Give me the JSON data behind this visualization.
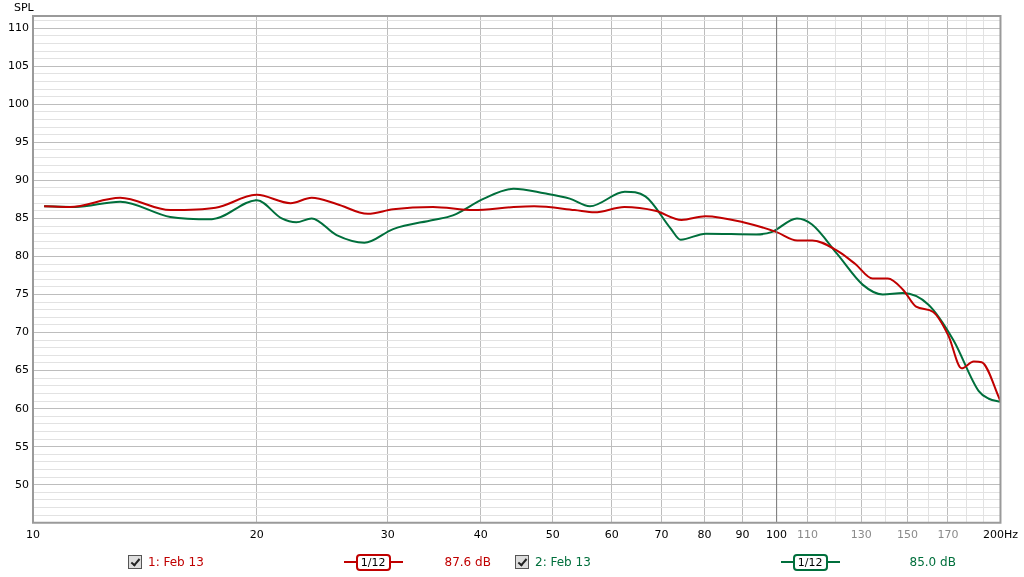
{
  "chart_data": {
    "type": "line",
    "ylabel": "SPL",
    "log": "x",
    "grid": true,
    "legend": "bottom",
    "marker": "none",
    "line_style": "solid",
    "xlim": [
      10,
      200
    ],
    "ylim": [
      45,
      111.6
    ],
    "xticks": [
      10,
      20,
      30,
      40,
      50,
      60,
      70,
      80,
      90,
      100,
      110,
      {
        "value": 120,
        "label": null
      },
      130,
      {
        "value": 140,
        "label": null
      },
      150,
      {
        "value": 160,
        "label": null
      },
      170,
      {
        "value": 180,
        "label": null
      },
      {
        "value": 190,
        "label": null
      },
      {
        "value": 200,
        "label": "200Hz"
      }
    ],
    "yticks": [
      {
        "value": 46,
        "label": null
      },
      {
        "value": 47,
        "label": null
      },
      {
        "value": 48,
        "label": null
      },
      {
        "value": 49,
        "label": null
      },
      50,
      {
        "value": 51,
        "label": null
      },
      {
        "value": 52,
        "label": null
      },
      {
        "value": 53,
        "label": null
      },
      {
        "value": 54,
        "label": null
      },
      55,
      {
        "value": 56,
        "label": null
      },
      {
        "value": 57,
        "label": null
      },
      {
        "value": 58,
        "label": null
      },
      {
        "value": 59,
        "label": null
      },
      60,
      {
        "value": 61,
        "label": null
      },
      {
        "value": 62,
        "label": null
      },
      {
        "value": 63,
        "label": null
      },
      {
        "value": 64,
        "label": null
      },
      65,
      {
        "value": 66,
        "label": null
      },
      {
        "value": 67,
        "label": null
      },
      {
        "value": 68,
        "label": null
      },
      {
        "value": 69,
        "label": null
      },
      70,
      {
        "value": 71,
        "label": null
      },
      {
        "value": 72,
        "label": null
      },
      {
        "value": 73,
        "label": null
      },
      {
        "value": 74,
        "label": null
      },
      75,
      {
        "value": 76,
        "label": null
      },
      {
        "value": 77,
        "label": null
      },
      {
        "value": 78,
        "label": null
      },
      {
        "value": 79,
        "label": null
      },
      80,
      {
        "value": 81,
        "label": null
      },
      {
        "value": 82,
        "label": null
      },
      {
        "value": 83,
        "label": null
      },
      {
        "value": 84,
        "label": null
      },
      85,
      {
        "value": 86,
        "label": null
      },
      {
        "value": 87,
        "label": null
      },
      {
        "value": 88,
        "label": null
      },
      {
        "value": 89,
        "label": null
      },
      90,
      {
        "value": 91,
        "label": null
      },
      {
        "value": 92,
        "label": null
      },
      {
        "value": 93,
        "label": null
      },
      {
        "value": 94,
        "label": null
      },
      95,
      {
        "value": 96,
        "label": null
      },
      {
        "value": 97,
        "label": null
      },
      {
        "value": 98,
        "label": null
      },
      {
        "value": 99,
        "label": null
      },
      100,
      {
        "value": 101,
        "label": null
      },
      {
        "value": 102,
        "label": null
      },
      {
        "value": 103,
        "label": null
      },
      {
        "value": 104,
        "label": null
      },
      105,
      {
        "value": 106,
        "label": null
      },
      {
        "value": 107,
        "label": null
      },
      {
        "value": 108,
        "label": null
      },
      {
        "value": 109,
        "label": null
      },
      110,
      {
        "value": 111,
        "label": null
      }
    ],
    "ref_lines": [
      {
        "axis": "x",
        "value": 100,
        "color": "#7a7a7a"
      }
    ],
    "annotations": [
      "1/12",
      "87.6 dB",
      "1/12",
      "85.0 dB"
    ],
    "series": [
      {
        "name": "1: Feb 13",
        "color": "#c00000",
        "x": [
          10.35,
          11.2,
          13.1,
          15.3,
          17.6,
          20.0,
          22.2,
          23.7,
          25.6,
          28.2,
          30.5,
          34.5,
          39.1,
          44.3,
          47.2,
          53.5,
          56.9,
          62.4,
          68.7,
          74.5,
          80.2,
          91.0,
          100,
          106.6,
          111.7,
          120.9,
          127.6,
          134.6,
          141.1,
          148.0,
          154,
          162.4,
          170.2,
          177.3,
          184.1,
          188.7,
          200
        ],
        "values": [
          86.6,
          86.5,
          87.7,
          86.1,
          86.4,
          88.1,
          87.0,
          87.7,
          86.9,
          85.6,
          86.2,
          86.5,
          86.1,
          86.5,
          86.6,
          86.1,
          85.8,
          86.5,
          86.0,
          84.8,
          85.3,
          84.4,
          83.2,
          82.1,
          82.1,
          80.7,
          79.0,
          77.1,
          77.1,
          75.6,
          73.4,
          72.7,
          69.6,
          65.3,
          66.2,
          66.1,
          61.0
        ]
      },
      {
        "name": "2: Feb 13",
        "color": "#006f3c",
        "x": [
          10.35,
          11.4,
          13.1,
          15.3,
          17.4,
          20.0,
          21.6,
          22.6,
          23.7,
          25.6,
          27.9,
          30.5,
          34.5,
          36.7,
          40.4,
          44.3,
          48.7,
          52.7,
          56.1,
          62.5,
          66.6,
          72.0,
          74.3,
          80.3,
          93.9,
          98.4,
          106.5,
          111.6,
          120.7,
          130.5,
          138.9,
          147.8,
          159.9,
          172.9,
          187.0,
          192.9,
          200
        ],
        "values": [
          86.6,
          86.5,
          87.2,
          85.2,
          84.9,
          87.4,
          85.0,
          84.5,
          85.0,
          82.8,
          81.8,
          83.6,
          84.8,
          85.4,
          87.6,
          88.9,
          88.3,
          87.6,
          86.6,
          88.5,
          87.9,
          83.7,
          82.2,
          83.0,
          82.9,
          83.2,
          85.0,
          84.2,
          80.3,
          76.3,
          75.0,
          75.2,
          73.7,
          69.0,
          62.3,
          61.3,
          60.9
        ]
      }
    ]
  }
}
